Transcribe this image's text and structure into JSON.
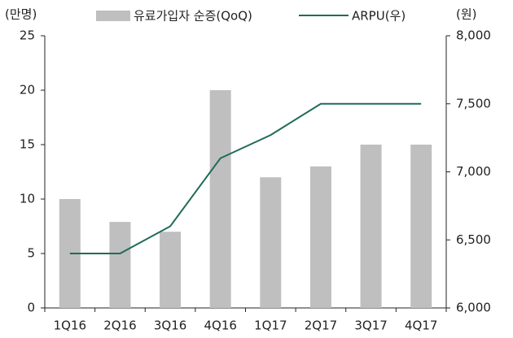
{
  "chart_data": {
    "type": "bar",
    "ylabel": "(만명)",
    "y2label": "(원)",
    "categories": [
      "1Q16",
      "2Q16",
      "3Q16",
      "4Q16",
      "1Q17",
      "2Q17",
      "3Q17",
      "4Q17"
    ],
    "series": [
      {
        "name": "유료가입자 순증(QoQ)",
        "type": "bar",
        "color": "#bfbfbf",
        "values": [
          10,
          7.9,
          7,
          20,
          12,
          13,
          15,
          15
        ]
      },
      {
        "name": "ARPU(우)",
        "type": "line",
        "axis": "y2",
        "color": "#1f6b5a",
        "values": [
          6400,
          6400,
          6600,
          7100,
          7270,
          7500,
          7500,
          7500
        ]
      }
    ],
    "ylim": [
      0,
      25
    ],
    "yticks": [
      0,
      5,
      10,
      15,
      20,
      25
    ],
    "y2lim": [
      6000,
      8000
    ],
    "y2ticks": [
      {
        "value": 6000,
        "label": "6,000"
      },
      {
        "value": 6500,
        "label": "6,500"
      },
      {
        "value": 7000,
        "label": "7,000"
      },
      {
        "value": 7500,
        "label": "7,500"
      },
      {
        "value": 8000,
        "label": "8,000"
      }
    ],
    "grid": false
  }
}
